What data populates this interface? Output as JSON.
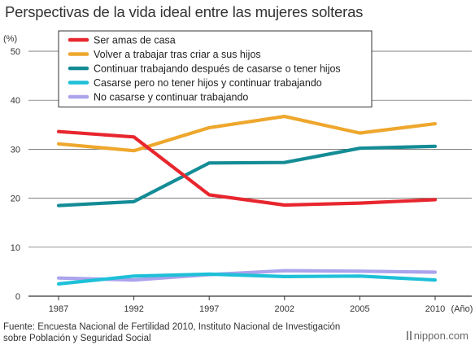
{
  "chart_data": {
    "type": "line",
    "title": "Perspectivas de la vida ideal entre las mujeres solteras",
    "ylabel": "(%)",
    "xlabel": "(Año)",
    "ylim": [
      0,
      50
    ],
    "yticks": [
      0,
      10,
      20,
      30,
      40,
      50
    ],
    "x": [
      "1987",
      "1992",
      "1997",
      "2002",
      "2005",
      "2010"
    ],
    "grid": true,
    "legend_position": "top-left",
    "series": [
      {
        "name": "Ser amas de casa",
        "color": "#e8262e",
        "values": [
          33.6,
          32.5,
          20.7,
          18.6,
          19.0,
          19.7
        ]
      },
      {
        "name": "Volver a trabajar tras criar a sus hijos",
        "color": "#eea72d",
        "values": [
          31.1,
          29.7,
          34.4,
          36.7,
          33.3,
          35.2
        ]
      },
      {
        "name": "Continuar trabajando después de casarse o tener hijos",
        "color": "#148c96",
        "values": [
          18.5,
          19.3,
          27.2,
          27.3,
          30.2,
          30.6
        ]
      },
      {
        "name": "Casarse pero no tener hijos y continuar trabajando",
        "color": "#1ec0d8",
        "values": [
          2.5,
          4.1,
          4.5,
          4.0,
          4.1,
          3.3
        ]
      },
      {
        "name": "No casarse y continuar trabajando",
        "color": "#aba3ec",
        "values": [
          3.7,
          3.3,
          4.4,
          5.2,
          5.1,
          4.9
        ]
      }
    ]
  },
  "source": {
    "line1": "Fuente: Encuesta Nacional de Fertilidad 2010, Instituto Nacional de Investigación",
    "line2": "sobre Población y Seguridad Social"
  },
  "logo": {
    "text": "nippon.com"
  }
}
